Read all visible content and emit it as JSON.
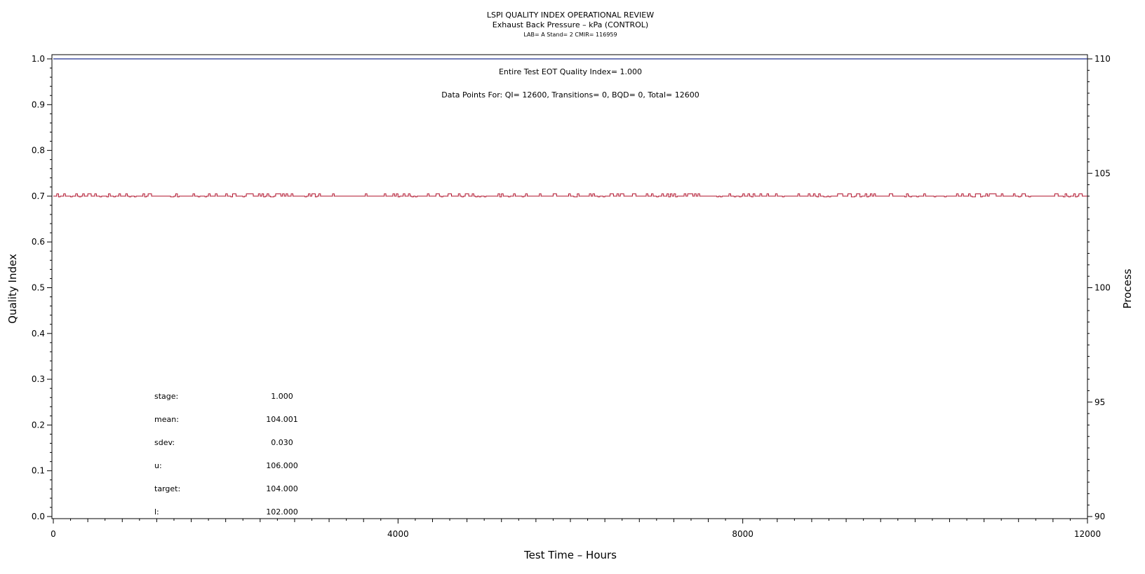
{
  "chart_data": {
    "type": "line",
    "title": "LSPI QUALITY INDEX OPERATIONAL REVIEW",
    "subtitle": "Exhaust Back Pressure – kPa (CONTROL)",
    "subtitle2": "LAB= A Stand= 2 CMIR= 116959",
    "xlabel": "Test Time – Hours",
    "ylabel": "Quality Index",
    "y2label": "Process",
    "xlim": [
      0,
      12000
    ],
    "ylim": [
      0,
      1.0
    ],
    "y2lim": [
      90,
      110
    ],
    "x_ticks": [
      0,
      4000,
      8000,
      12000
    ],
    "x_tick_labels": [
      "0",
      "4000",
      "8000",
      "12000"
    ],
    "y_ticks": [
      0,
      0.1,
      0.2,
      0.3,
      0.4,
      0.5,
      0.6,
      0.7,
      0.8,
      0.9,
      1.0
    ],
    "y_tick_labels": [
      "0.0",
      "0.1",
      "0.2",
      "0.3",
      "0.4",
      "0.5",
      "0.6",
      "0.7",
      "0.8",
      "0.9",
      "1.0"
    ],
    "y2_ticks": [
      90,
      95,
      100,
      105,
      110
    ],
    "y2_tick_labels": [
      "90",
      "95",
      "100",
      "105",
      "110"
    ],
    "series": [
      {
        "axis": "left",
        "color": "#1f2f8f",
        "x": [
          0,
          12000
        ],
        "values": [
          1.0,
          1.0
        ]
      },
      {
        "axis": "right",
        "color": "#b0102a",
        "x": [
          0,
          12000
        ],
        "values": [
          104.0,
          104.0
        ],
        "mean": 104.001,
        "sdev": 0.03,
        "resolution": 0.1
      }
    ],
    "annotations": {
      "quality_index": "Entire Test EOT Quality Index=   1.000",
      "data_points": "Data Points For: QI=  12600, Transitions=      0, BQD=      0, Total=  12600"
    },
    "stats": [
      {
        "label": "stage:",
        "value": "1.000"
      },
      {
        "label": "mean:",
        "value": "104.001"
      },
      {
        "label": "sdev:",
        "value": "0.030"
      },
      {
        "label": "u:",
        "value": "106.000"
      },
      {
        "label": "target:",
        "value": "104.000"
      },
      {
        "label": "l:",
        "value": "102.000"
      }
    ],
    "grid": false,
    "legend": "none"
  }
}
